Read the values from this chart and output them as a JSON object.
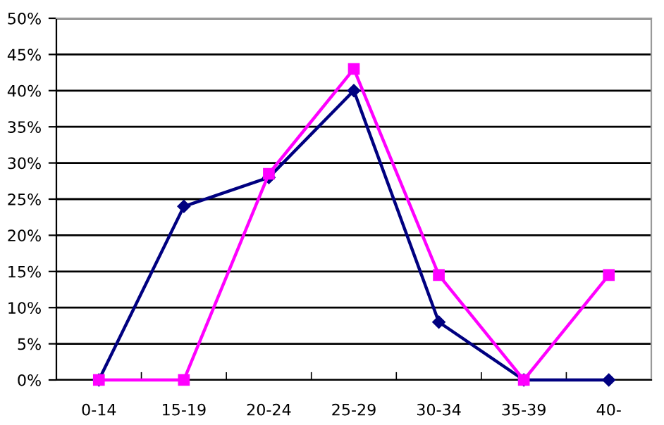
{
  "chart_data": {
    "type": "line",
    "categories": [
      "0-14",
      "15-19",
      "20-24",
      "25-29",
      "30-34",
      "35-39",
      "40-"
    ],
    "series": [
      {
        "color": "#000080",
        "marker": "diamond",
        "values": [
          0,
          24,
          28,
          40,
          8,
          0,
          0
        ]
      },
      {
        "color": "#ff00ff",
        "marker": "square",
        "values": [
          0,
          0,
          28.5,
          43,
          14.5,
          0,
          14.5
        ]
      }
    ],
    "ylim": [
      0,
      50
    ],
    "yticks": [
      {
        "value": 0,
        "label": "0%"
      },
      {
        "value": 5,
        "label": "5%"
      },
      {
        "value": 10,
        "label": "10%"
      },
      {
        "value": 15,
        "label": "15%"
      },
      {
        "value": 20,
        "label": "20%"
      },
      {
        "value": 25,
        "label": "25%"
      },
      {
        "value": 30,
        "label": "30%"
      },
      {
        "value": 35,
        "label": "35%"
      },
      {
        "value": 40,
        "label": "40%"
      },
      {
        "value": 45,
        "label": "45%"
      },
      {
        "value": 50,
        "label": "50%"
      }
    ],
    "grid": "y",
    "line_style": "solid"
  }
}
